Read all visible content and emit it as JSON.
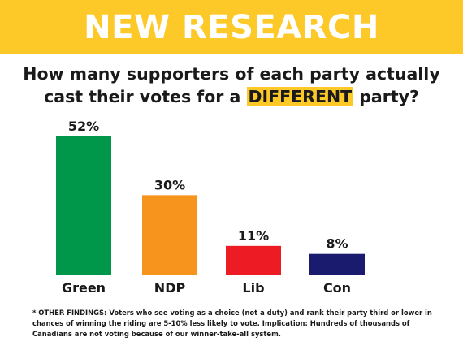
{
  "banner": {
    "title": "NEW RESEARCH",
    "color": "#fcc928"
  },
  "question": {
    "line1": "How many supporters of each party actually",
    "line2_pre": "cast their votes for a ",
    "line2_highlight": "DIFFERENT",
    "line2_post": " party?"
  },
  "chart_data": {
    "type": "bar",
    "categories": [
      "Green",
      "NDP",
      "Lib",
      "Con"
    ],
    "values": [
      52,
      30,
      11,
      8
    ],
    "value_labels": [
      "52%",
      "30%",
      "11%",
      "8%"
    ],
    "colors": [
      "#00974a",
      "#f7941d",
      "#ed1c24",
      "#1a1a6e"
    ],
    "unit": "%",
    "ylim": [
      0,
      52
    ],
    "grid": false,
    "legend": false
  },
  "footnote": "* OTHER FINDINGS: Voters who see voting as a choice (not a duty) and rank their party third or lower in chances of winning the riding are 5-10% less likely to vote. Implication: Hundreds of thousands of Canadians are not voting because of our winner-take-all system."
}
